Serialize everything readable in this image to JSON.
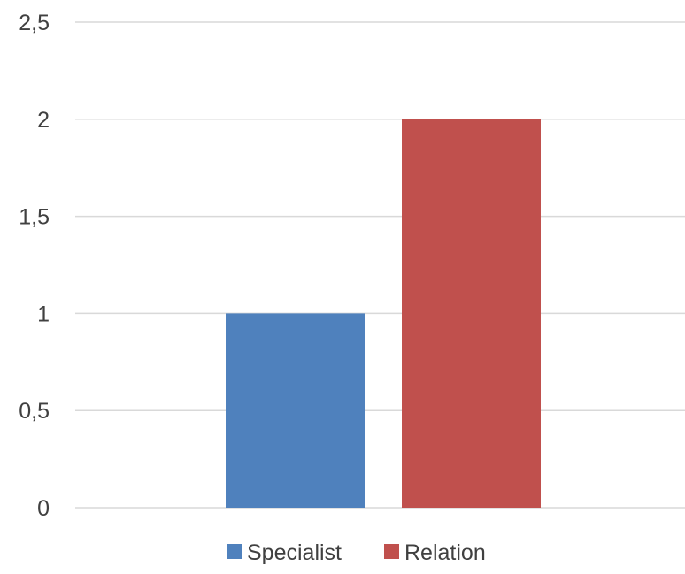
{
  "chart_data": {
    "type": "bar",
    "categories": [
      ""
    ],
    "series": [
      {
        "name": "Specialist",
        "color": "#4f81bd",
        "values": [
          1
        ]
      },
      {
        "name": "Relation",
        "color": "#c0504d",
        "values": [
          2
        ]
      }
    ],
    "ylim": [
      0,
      2.5
    ],
    "yticks": [
      "0",
      "0,5",
      "1",
      "1,5",
      "2",
      "2,5"
    ],
    "grid": true,
    "legend_position": "bottom",
    "title": "",
    "xlabel": "",
    "ylabel": ""
  }
}
